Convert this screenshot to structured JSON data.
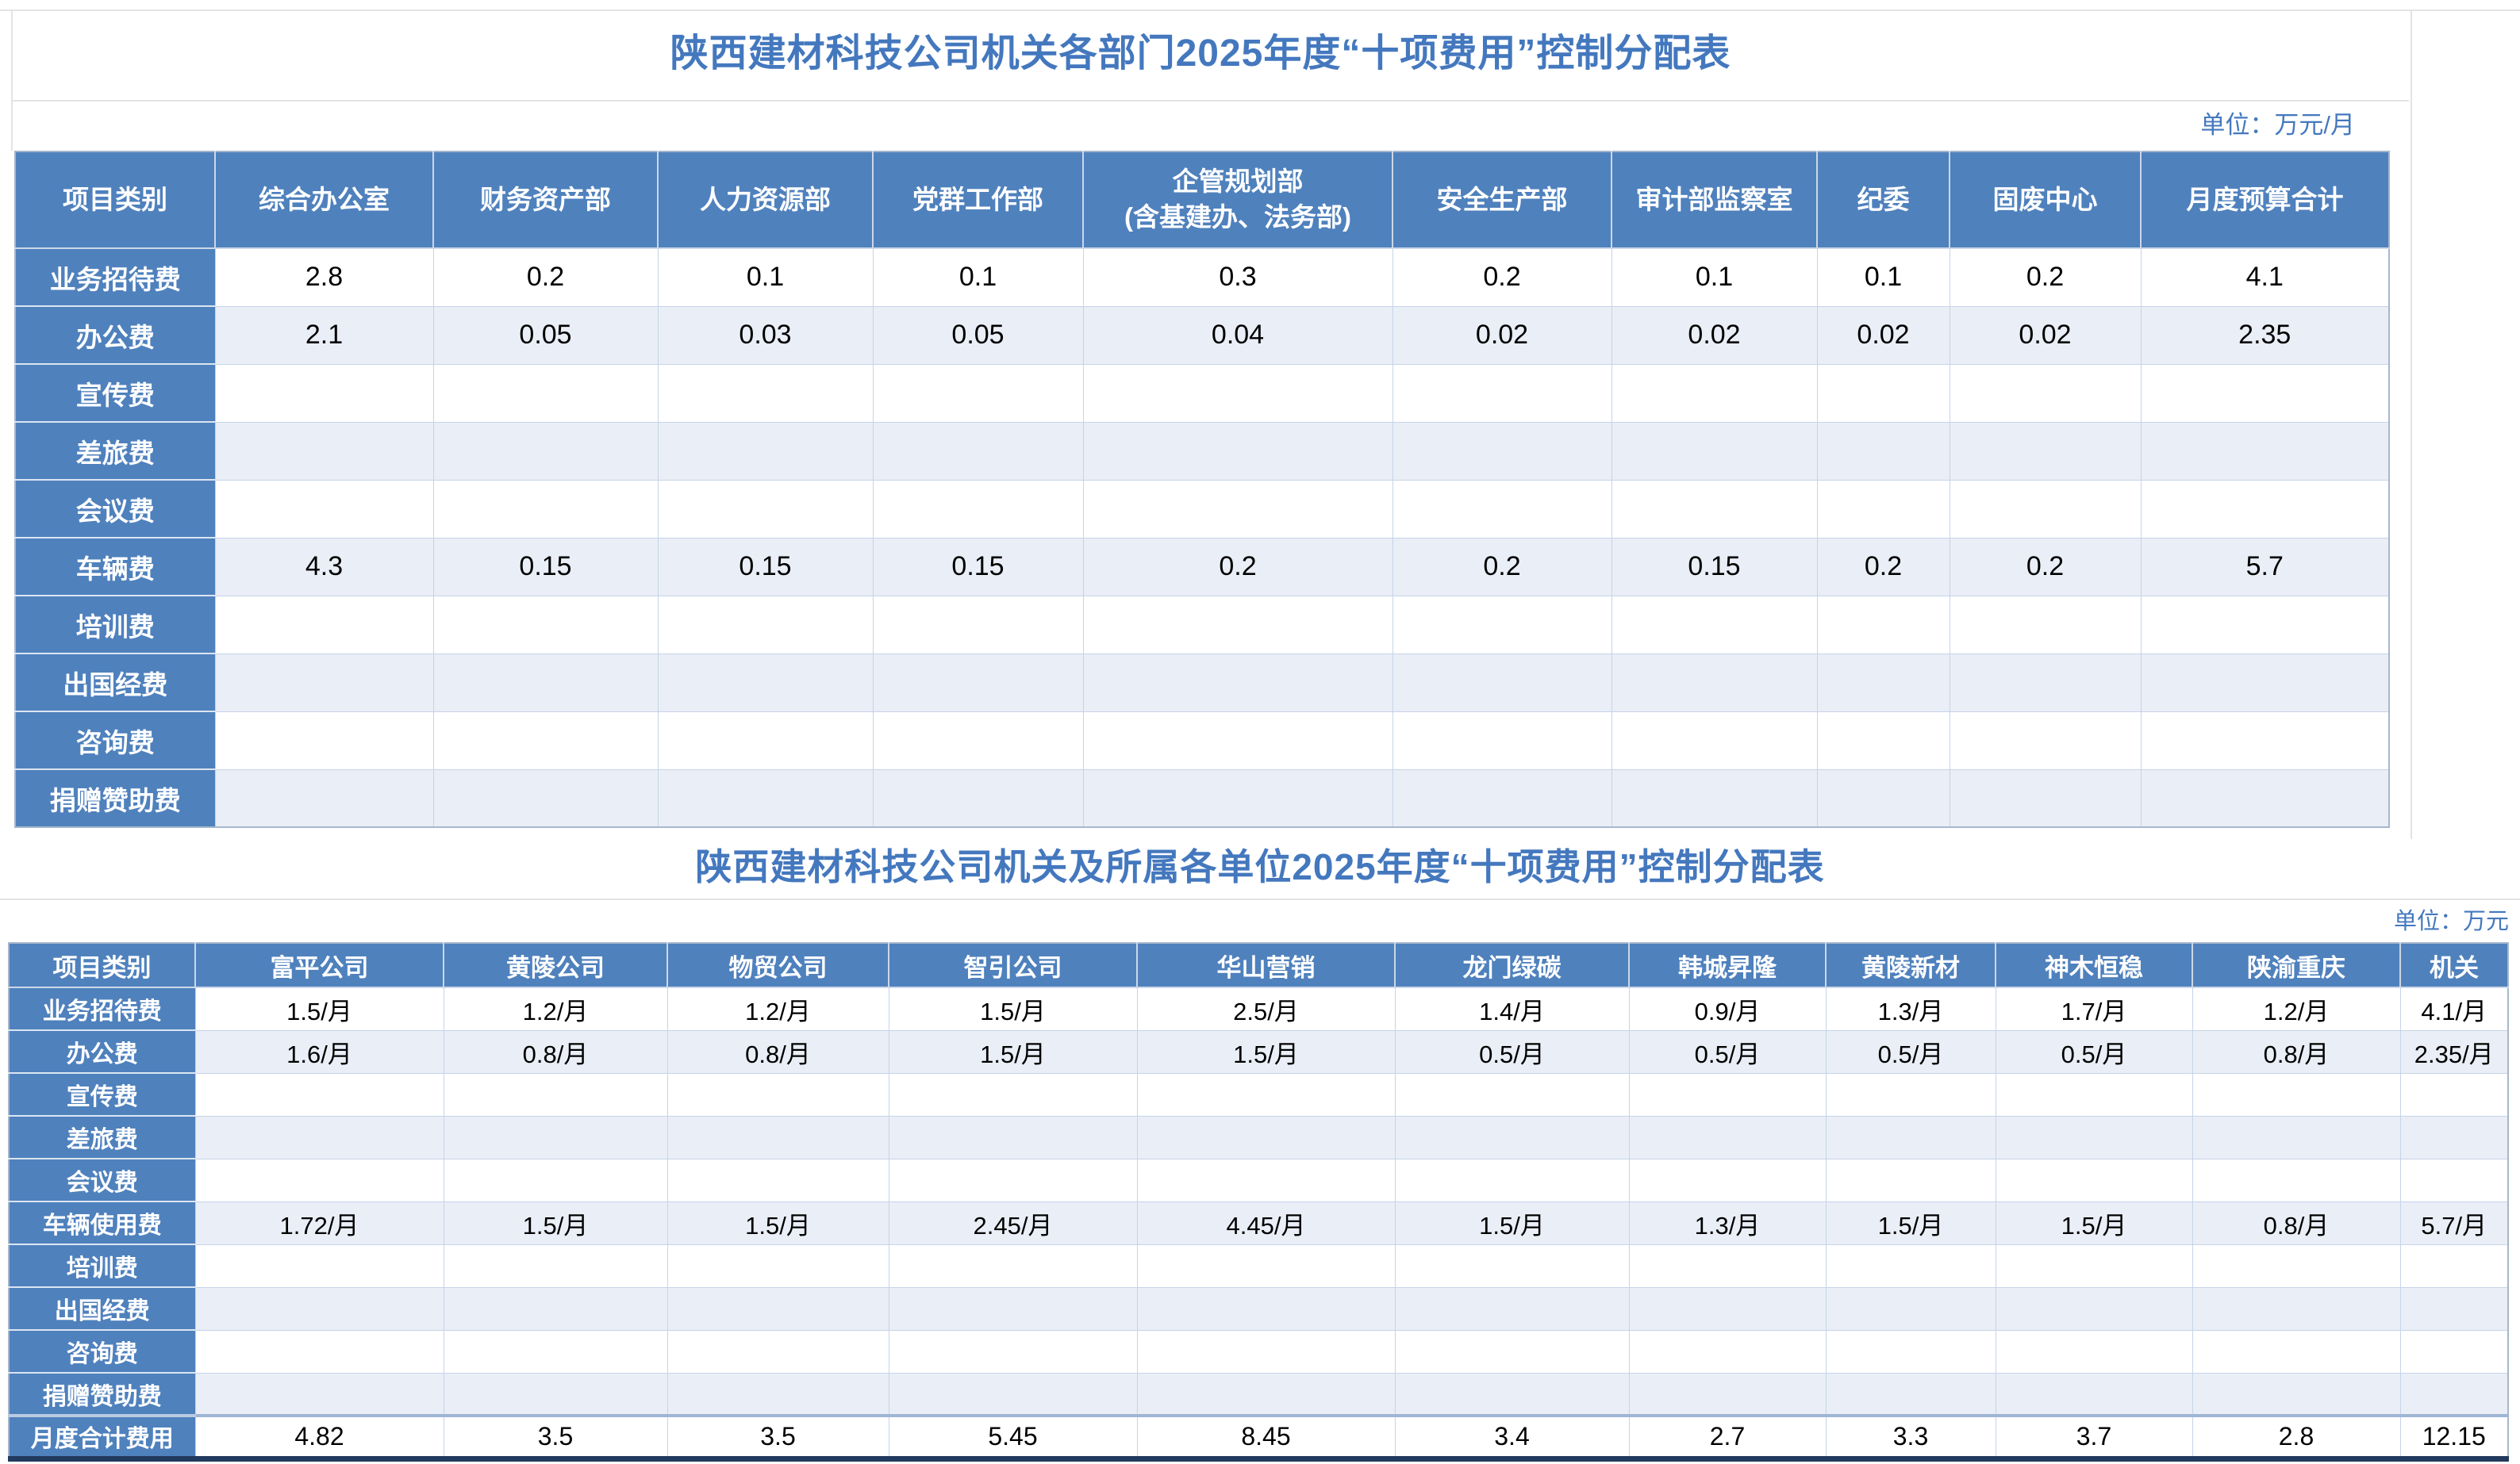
{
  "page": {
    "accent_color": "#4478BE",
    "header_bg": "#4F81BD",
    "band_color": "#EAEEF6"
  },
  "table1": {
    "title": "陕西建材科技公司机关各部门2025年度“十项费用”控制分配表",
    "unit_label": "单位：万元/月",
    "columns": [
      "项目类别",
      "综合办公室",
      "财务资产部",
      "人力资源部",
      "党群工作部",
      "企管规划部\n(含基建办、法务部)",
      "安全生产部",
      "审计部监察室",
      "纪委",
      "固废中心",
      "月度预算合计"
    ],
    "rows": [
      {
        "label": "业务招待费",
        "values": [
          "2.8",
          "0.2",
          "0.1",
          "0.1",
          "0.3",
          "0.2",
          "0.1",
          "0.1",
          "0.2",
          "4.1"
        ]
      },
      {
        "label": "办公费",
        "values": [
          "2.1",
          "0.05",
          "0.03",
          "0.05",
          "0.04",
          "0.02",
          "0.02",
          "0.02",
          "0.02",
          "2.35"
        ]
      },
      {
        "label": "宣传费",
        "values": [
          "",
          "",
          "",
          "",
          "",
          "",
          "",
          "",
          "",
          ""
        ]
      },
      {
        "label": "差旅费",
        "values": [
          "",
          "",
          "",
          "",
          "",
          "",
          "",
          "",
          "",
          ""
        ]
      },
      {
        "label": "会议费",
        "values": [
          "",
          "",
          "",
          "",
          "",
          "",
          "",
          "",
          "",
          ""
        ]
      },
      {
        "label": "车辆费",
        "values": [
          "4.3",
          "0.15",
          "0.15",
          "0.15",
          "0.2",
          "0.2",
          "0.15",
          "0.2",
          "0.2",
          "5.7"
        ]
      },
      {
        "label": "培训费",
        "values": [
          "",
          "",
          "",
          "",
          "",
          "",
          "",
          "",
          "",
          ""
        ]
      },
      {
        "label": "出国经费",
        "values": [
          "",
          "",
          "",
          "",
          "",
          "",
          "",
          "",
          "",
          ""
        ]
      },
      {
        "label": "咨询费",
        "values": [
          "",
          "",
          "",
          "",
          "",
          "",
          "",
          "",
          "",
          ""
        ]
      },
      {
        "label": "捐赠赞助费",
        "values": [
          "",
          "",
          "",
          "",
          "",
          "",
          "",
          "",
          "",
          ""
        ]
      }
    ]
  },
  "table2": {
    "title": "陕西建材科技公司机关及所属各单位2025年度“十项费用”控制分配表",
    "unit_label": "单位：万元",
    "columns": [
      "项目类别",
      "富平公司",
      "黄陵公司",
      "物贸公司",
      "智引公司",
      "华山营销",
      "龙门绿碳",
      "韩城昇隆",
      "黄陵新材",
      "神木恒稳",
      "陕渝重庆",
      "机关"
    ],
    "rows": [
      {
        "label": "业务招待费",
        "values": [
          "1.5/月",
          "1.2/月",
          "1.2/月",
          "1.5/月",
          "2.5/月",
          "1.4/月",
          "0.9/月",
          "1.3/月",
          "1.7/月",
          "1.2/月",
          "4.1/月"
        ]
      },
      {
        "label": "办公费",
        "values": [
          "1.6/月",
          "0.8/月",
          "0.8/月",
          "1.5/月",
          "1.5/月",
          "0.5/月",
          "0.5/月",
          "0.5/月",
          "0.5/月",
          "0.8/月",
          "2.35/月"
        ]
      },
      {
        "label": "宣传费",
        "values": [
          "",
          "",
          "",
          "",
          "",
          "",
          "",
          "",
          "",
          "",
          ""
        ]
      },
      {
        "label": "差旅费",
        "values": [
          "",
          "",
          "",
          "",
          "",
          "",
          "",
          "",
          "",
          "",
          ""
        ]
      },
      {
        "label": "会议费",
        "values": [
          "",
          "",
          "",
          "",
          "",
          "",
          "",
          "",
          "",
          "",
          ""
        ]
      },
      {
        "label": "车辆使用费",
        "values": [
          "1.72/月",
          "1.5/月",
          "1.5/月",
          "2.45/月",
          "4.45/月",
          "1.5/月",
          "1.3/月",
          "1.5/月",
          "1.5/月",
          "0.8/月",
          "5.7/月"
        ]
      },
      {
        "label": "培训费",
        "values": [
          "",
          "",
          "",
          "",
          "",
          "",
          "",
          "",
          "",
          "",
          ""
        ]
      },
      {
        "label": "出国经费",
        "values": [
          "",
          "",
          "",
          "",
          "",
          "",
          "",
          "",
          "",
          "",
          ""
        ]
      },
      {
        "label": "咨询费",
        "values": [
          "",
          "",
          "",
          "",
          "",
          "",
          "",
          "",
          "",
          "",
          ""
        ]
      },
      {
        "label": "捐赠赞助费",
        "values": [
          "",
          "",
          "",
          "",
          "",
          "",
          "",
          "",
          "",
          "",
          ""
        ]
      },
      {
        "label": "月度合计费用",
        "values": [
          "4.82",
          "3.5",
          "3.5",
          "5.45",
          "8.45",
          "3.4",
          "2.7",
          "3.3",
          "3.7",
          "2.8",
          "12.15"
        ],
        "total": true
      }
    ]
  }
}
